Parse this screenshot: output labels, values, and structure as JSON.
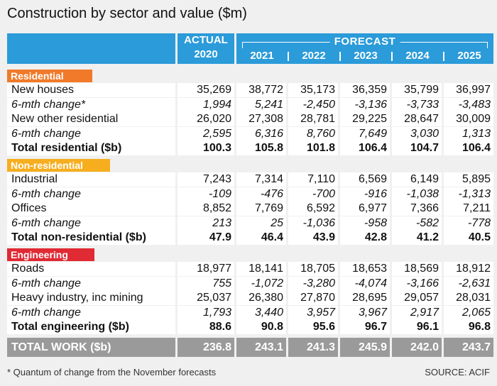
{
  "title": "Construction by sector and value ($m)",
  "header": {
    "actual_label": "ACTUAL",
    "actual_year": "2020",
    "forecast_label": "FORECAST",
    "forecast_years": [
      "2021",
      "2022",
      "2023",
      "2024",
      "2025"
    ]
  },
  "colors": {
    "header": "#2b9bd9",
    "residential": "#f07a2a",
    "non_residential": "#f6ae1f",
    "engineering": "#e02a34",
    "total": "#9a9a9a"
  },
  "chart_data": {
    "type": "table",
    "title": "Construction by sector and value ($m)",
    "columns": [
      "2020",
      "2021",
      "2022",
      "2023",
      "2024",
      "2025"
    ],
    "sections": [
      {
        "name": "Residential",
        "rows": [
          {
            "label": "New houses",
            "style": "normal",
            "values": [
              "35,269",
              "38,772",
              "35,173",
              "36,359",
              "35,799",
              "36,997"
            ]
          },
          {
            "label": "6-mth change*",
            "style": "italic",
            "values": [
              "1,994",
              "5,241",
              "-2,450",
              "-3,136",
              "-3,733",
              "-3,483"
            ]
          },
          {
            "label": "New other residential",
            "style": "normal",
            "values": [
              "26,020",
              "27,308",
              "28,781",
              "29,225",
              "28,647",
              "30,009"
            ]
          },
          {
            "label": "6-mth change",
            "style": "italic",
            "values": [
              "2,595",
              "6,316",
              "8,760",
              "7,649",
              "3,030",
              "1,313"
            ]
          },
          {
            "label": "Total residential ($b)",
            "style": "bold",
            "values": [
              "100.3",
              "105.8",
              "101.8",
              "106.4",
              "104.7",
              "106.4"
            ]
          }
        ]
      },
      {
        "name": "Non-residential",
        "rows": [
          {
            "label": "Industrial",
            "style": "normal",
            "values": [
              "7,243",
              "7,314",
              "7,110",
              "6,569",
              "6,149",
              "5,895"
            ]
          },
          {
            "label": "6-mth change",
            "style": "italic",
            "values": [
              "-109",
              "-476",
              "-700",
              "-916",
              "-1,038",
              "-1,313"
            ]
          },
          {
            "label": "Offices",
            "style": "normal",
            "values": [
              "8,852",
              "7,769",
              "6,592",
              "6,977",
              "7,366",
              "7,211"
            ]
          },
          {
            "label": "6-mth change",
            "style": "italic",
            "values": [
              "213",
              "25",
              "-1,036",
              "-958",
              "-582",
              "-778"
            ]
          },
          {
            "label": "Total non-residential ($b)",
            "style": "bold",
            "values": [
              "47.9",
              "46.4",
              "43.9",
              "42.8",
              "41.2",
              "40.5"
            ]
          }
        ]
      },
      {
        "name": "Engineering",
        "rows": [
          {
            "label": "Roads",
            "style": "normal",
            "values": [
              "18,977",
              "18,141",
              "18,705",
              "18,653",
              "18,569",
              "18,912"
            ]
          },
          {
            "label": "6-mth change",
            "style": "italic",
            "values": [
              "755",
              "-1,072",
              "-3,280",
              "-4,074",
              "-3,166",
              "-2,631"
            ]
          },
          {
            "label": "Heavy industry, inc mining",
            "style": "normal",
            "values": [
              "25,037",
              "26,380",
              "27,870",
              "28,695",
              "29,057",
              "28,031"
            ]
          },
          {
            "label": "6-mth change",
            "style": "italic",
            "values": [
              "1,793",
              "3,440",
              "3,957",
              "3,967",
              "2,917",
              "2,065"
            ]
          },
          {
            "label": "Total engineering ($b)",
            "style": "bold",
            "values": [
              "88.6",
              "90.8",
              "95.6",
              "96.7",
              "96.1",
              "96.8"
            ]
          }
        ]
      }
    ],
    "total": {
      "label": "TOTAL WORK ($b)",
      "values": [
        "236.8",
        "243.1",
        "241.3",
        "245.9",
        "242.0",
        "243.7"
      ]
    }
  },
  "footnote": "* Quantum of change from the November forecasts",
  "source": "SOURCE: ACIF"
}
